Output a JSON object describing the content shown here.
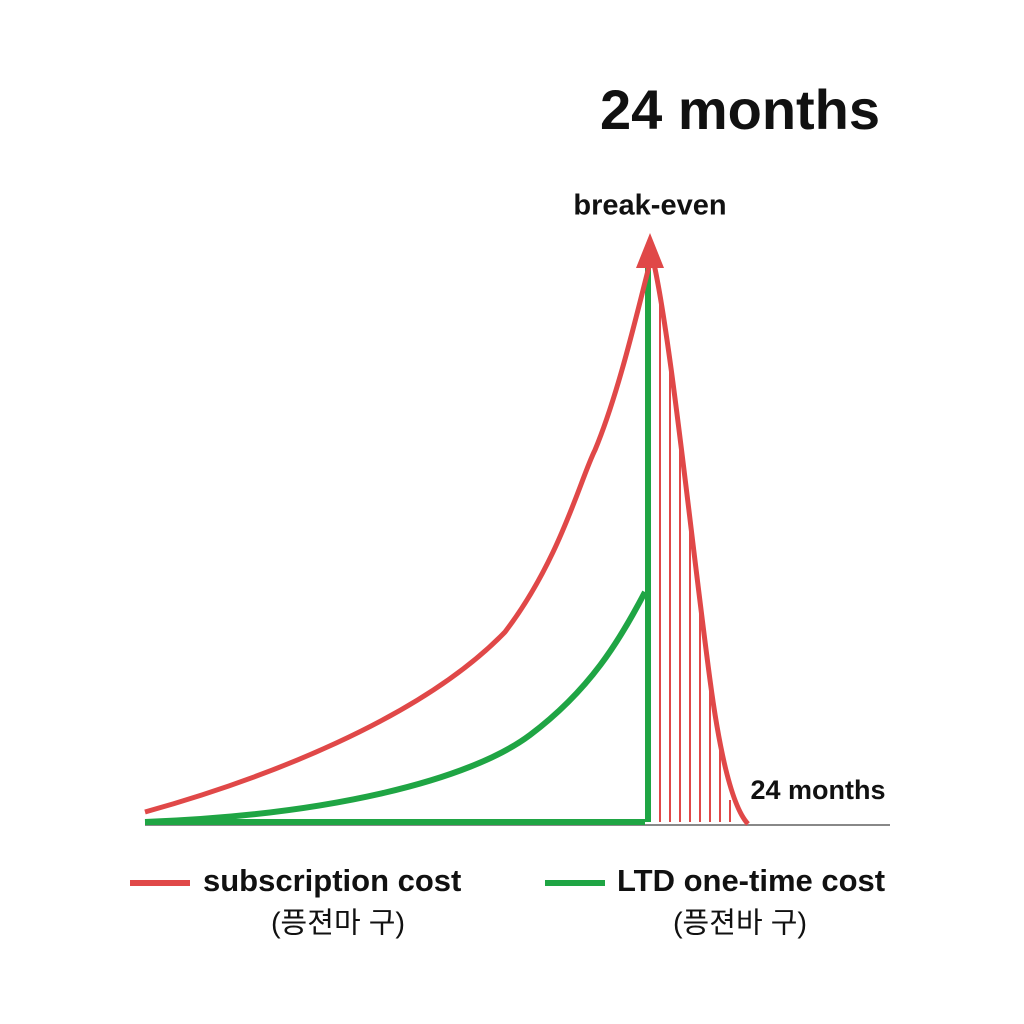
{
  "header": {
    "title": "24 months"
  },
  "annotations": {
    "peak": "break-even",
    "axis_end": "24 months"
  },
  "legend": [
    {
      "label": "subscription cost",
      "note": "(픙젼마 구)"
    },
    {
      "label": "LTD one-time cost",
      "note": "(픙젼바  구)"
    }
  ]
}
